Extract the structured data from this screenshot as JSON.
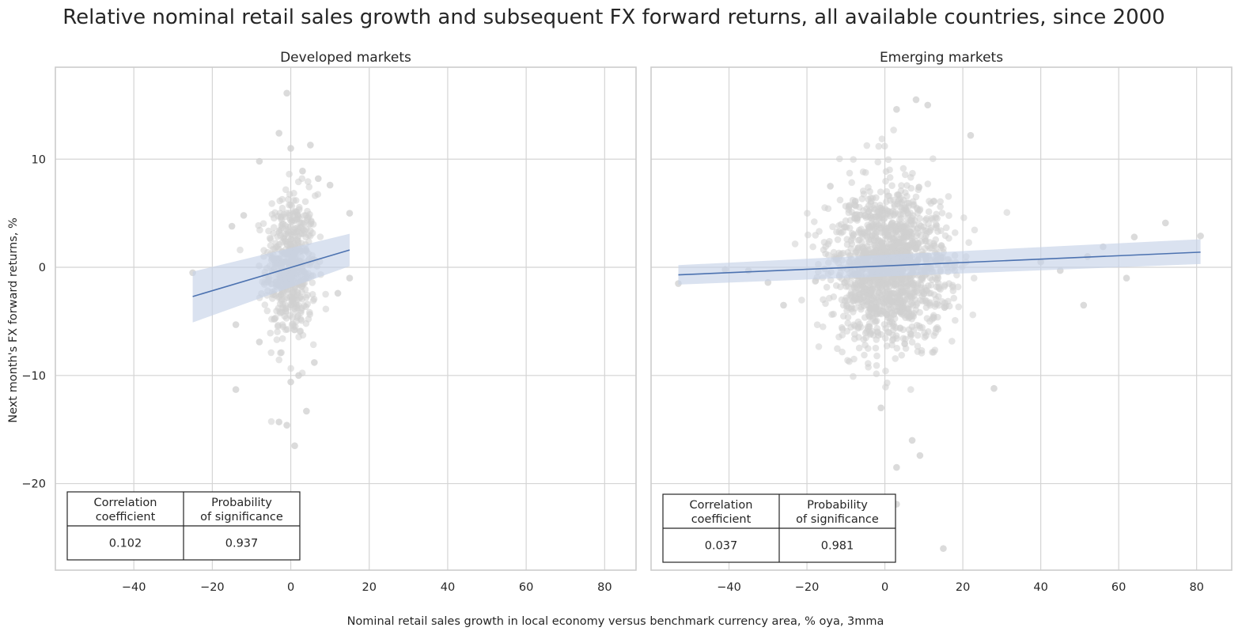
{
  "figure": {
    "title": "Relative nominal retail sales growth and subsequent FX forward returns, all available countries, since 2000",
    "xlabel": "Nominal retail sales growth in local economy versus benchmark currency area, % oya, 3mma",
    "ylabel": "Next month's FX forward returns, %"
  },
  "colors": {
    "scatter": "#cfcfcf",
    "regression_line": "#4c72b0",
    "confidence_band": "#c6d3e8",
    "grid": "#d4d4d4",
    "frame": "#cccccc",
    "table_border": "#262626"
  },
  "chart_data": [
    {
      "type": "scatter",
      "title": "Developed markets",
      "xlim": [
        -60,
        88
      ],
      "ylim": [
        -28,
        18.5
      ],
      "xticks": [
        -40,
        -20,
        0,
        20,
        40,
        60,
        80
      ],
      "yticks": [
        -20,
        -10,
        0,
        10
      ],
      "xtick_labels": [
        "−40",
        "−20",
        "0",
        "20",
        "40",
        "60",
        "80"
      ],
      "ytick_labels": [
        "−20",
        "−10",
        "0",
        "10"
      ],
      "grid": true,
      "regression": {
        "x": [
          -25,
          15
        ],
        "y": [
          -2.7,
          1.6
        ],
        "ci_lower": [
          -5.1,
          0.1
        ],
        "ci_upper": [
          -0.4,
          3.1
        ]
      },
      "notable_points": [
        {
          "x": -25,
          "y": -0.5
        },
        {
          "x": -15,
          "y": 3.8
        },
        {
          "x": -14,
          "y": -5.3
        },
        {
          "x": -14,
          "y": -11.3
        },
        {
          "x": -12,
          "y": 4.8
        },
        {
          "x": -8,
          "y": 9.8
        },
        {
          "x": -3,
          "y": 12.4
        },
        {
          "x": -1,
          "y": 16.1
        },
        {
          "x": 0,
          "y": 11.0
        },
        {
          "x": 3,
          "y": 8.9
        },
        {
          "x": 5,
          "y": 11.3
        },
        {
          "x": 7,
          "y": 8.2
        },
        {
          "x": 10,
          "y": 7.6
        },
        {
          "x": 15,
          "y": 5.0
        },
        {
          "x": 15,
          "y": -1.0
        },
        {
          "x": 12,
          "y": -2.4
        },
        {
          "x": 4,
          "y": -13.3
        },
        {
          "x": 1,
          "y": -16.5
        },
        {
          "x": -1,
          "y": -14.6
        },
        {
          "x": -3,
          "y": -14.3
        },
        {
          "x": 2,
          "y": -10.0
        },
        {
          "x": -8,
          "y": -6.9
        },
        {
          "x": 0,
          "y": -10.6
        },
        {
          "x": 6,
          "y": -8.8
        }
      ],
      "cluster": {
        "center_x": 0,
        "center_y": 0,
        "sd_x": 3.2,
        "sd_y": 3.4,
        "n": 520
      },
      "table": {
        "headers": [
          "Correlation\ncoefficient",
          "Probability\nof significance"
        ],
        "values": [
          "0.102",
          "0.937"
        ]
      }
    },
    {
      "type": "scatter",
      "title": "Emerging markets",
      "xlim": [
        -60,
        89
      ],
      "ylim": [
        -28,
        18.5
      ],
      "xticks": [
        -40,
        -20,
        0,
        20,
        40,
        60,
        80
      ],
      "yticks": [
        -20,
        -10,
        0,
        10
      ],
      "xtick_labels": [
        "−40",
        "−20",
        "0",
        "20",
        "40",
        "60",
        "80"
      ],
      "ytick_labels": [
        "−20",
        "−10",
        "0",
        "10"
      ],
      "grid": true,
      "regression": {
        "x": [
          -53,
          81
        ],
        "y": [
          -0.7,
          1.4
        ],
        "ci_lower": [
          -1.6,
          0.3
        ],
        "ci_upper": [
          0.2,
          2.6
        ]
      },
      "notable_points": [
        {
          "x": -53,
          "y": -1.5
        },
        {
          "x": -41,
          "y": -0.2
        },
        {
          "x": -35,
          "y": -0.3
        },
        {
          "x": -30,
          "y": -1.4
        },
        {
          "x": -26,
          "y": -3.5
        },
        {
          "x": -14,
          "y": 7.5
        },
        {
          "x": 3,
          "y": 14.6
        },
        {
          "x": 8,
          "y": 15.5
        },
        {
          "x": 11,
          "y": 15.0
        },
        {
          "x": 22,
          "y": 12.2
        },
        {
          "x": 40,
          "y": 0.5
        },
        {
          "x": 45,
          "y": -0.3
        },
        {
          "x": 51,
          "y": -3.5
        },
        {
          "x": 52,
          "y": 1.0
        },
        {
          "x": 56,
          "y": 1.9
        },
        {
          "x": 62,
          "y": -1.0
        },
        {
          "x": 64,
          "y": 2.8
        },
        {
          "x": 72,
          "y": 4.1
        },
        {
          "x": 81,
          "y": 2.9
        },
        {
          "x": 28,
          "y": -11.2
        },
        {
          "x": 3,
          "y": -18.5
        },
        {
          "x": 7,
          "y": -16.0
        },
        {
          "x": 9,
          "y": -17.4
        },
        {
          "x": 15,
          "y": -26.0
        },
        {
          "x": 3,
          "y": -21.9
        },
        {
          "x": -1,
          "y": -13.0
        }
      ],
      "cluster": {
        "center_x": 1,
        "center_y": 0,
        "sd_x": 7.5,
        "sd_y": 3.6,
        "n": 1500
      },
      "table": {
        "headers": [
          "Correlation\ncoefficient",
          "Probability\nof significance"
        ],
        "values": [
          "0.037",
          "0.981"
        ]
      }
    }
  ]
}
